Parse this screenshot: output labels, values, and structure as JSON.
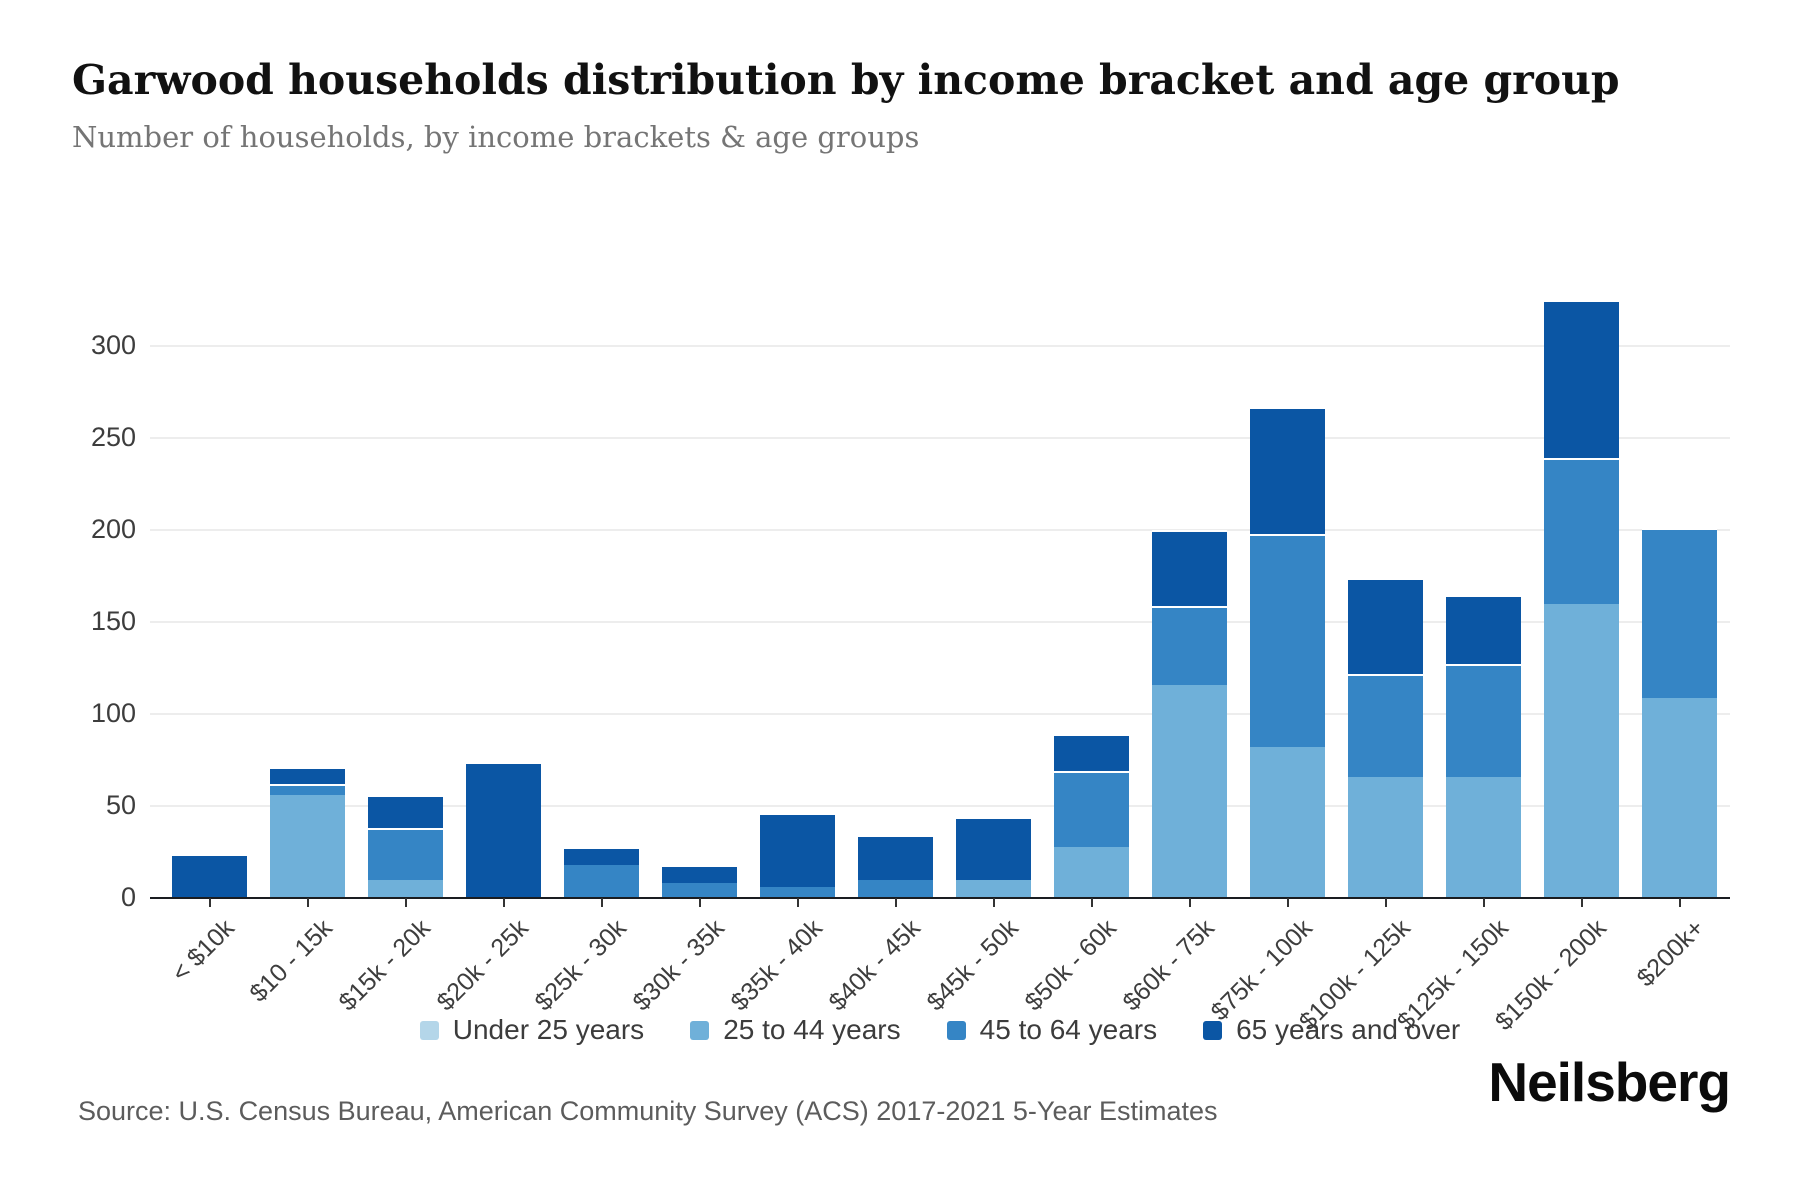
{
  "header": {
    "title": "Garwood households distribution by income bracket and age group",
    "subtitle": "Number of households, by income brackets & age groups"
  },
  "footer": {
    "source": "Source: U.S. Census Bureau, American Community Survey (ACS) 2017-2021 5-Year Estimates",
    "brand": "Neilsberg"
  },
  "colors": {
    "grid": "#ededed",
    "axis": "#1a1d21",
    "under_25": "#b4d6e9",
    "age_25_44": "#6fb0d9",
    "age_45_64": "#3585c5",
    "age_65_plus": "#0b56a4"
  },
  "chart_data": {
    "type": "bar",
    "stacked": true,
    "title": "Garwood households distribution by income bracket and age group",
    "xlabel": "",
    "ylabel": "Number of households",
    "grid": "horizontal",
    "legend_position": "bottom",
    "ylim": [
      0,
      336
    ],
    "yticks": [
      0,
      50,
      100,
      150,
      200,
      250,
      300
    ],
    "categories": [
      "< $10k",
      "$10 - 15k",
      "$15k - 20k",
      "$20k - 25k",
      "$25k - 30k",
      "$30k - 35k",
      "$35k - 40k",
      "$40k - 45k",
      "$45k - 50k",
      "$50k - 60k",
      "$60k - 75k",
      "$75k - 100k",
      "$100k - 125k",
      "$125k - 150k",
      "$150k - 200k",
      "$200k+"
    ],
    "series": [
      {
        "name": "Under 25 years",
        "color": "#b4d6e9",
        "values": [
          0,
          0,
          0,
          0,
          0,
          0,
          0,
          0,
          0,
          0,
          0,
          0,
          0,
          0,
          0,
          0
        ]
      },
      {
        "name": "25 to 44 years",
        "color": "#6fb0d9",
        "values": [
          0,
          56,
          10,
          0,
          0,
          0,
          0,
          0,
          10,
          28,
          116,
          82,
          66,
          66,
          160,
          109
        ]
      },
      {
        "name": "45 to 64 years",
        "color": "#3585c5",
        "values": [
          0,
          6,
          28,
          0,
          18,
          8,
          6,
          10,
          0,
          41,
          43,
          116,
          56,
          61,
          79,
          92
        ]
      },
      {
        "name": "65 years and over",
        "color": "#0b56a4",
        "values": [
          23,
          9,
          18,
          73,
          10,
          10,
          40,
          24,
          34,
          20,
          41,
          69,
          52,
          38,
          86,
          0
        ]
      }
    ],
    "totals": [
      23,
      71,
      56,
      73,
      28,
      18,
      46,
      34,
      44,
      89,
      200,
      267,
      174,
      165,
      325,
      201
    ]
  }
}
